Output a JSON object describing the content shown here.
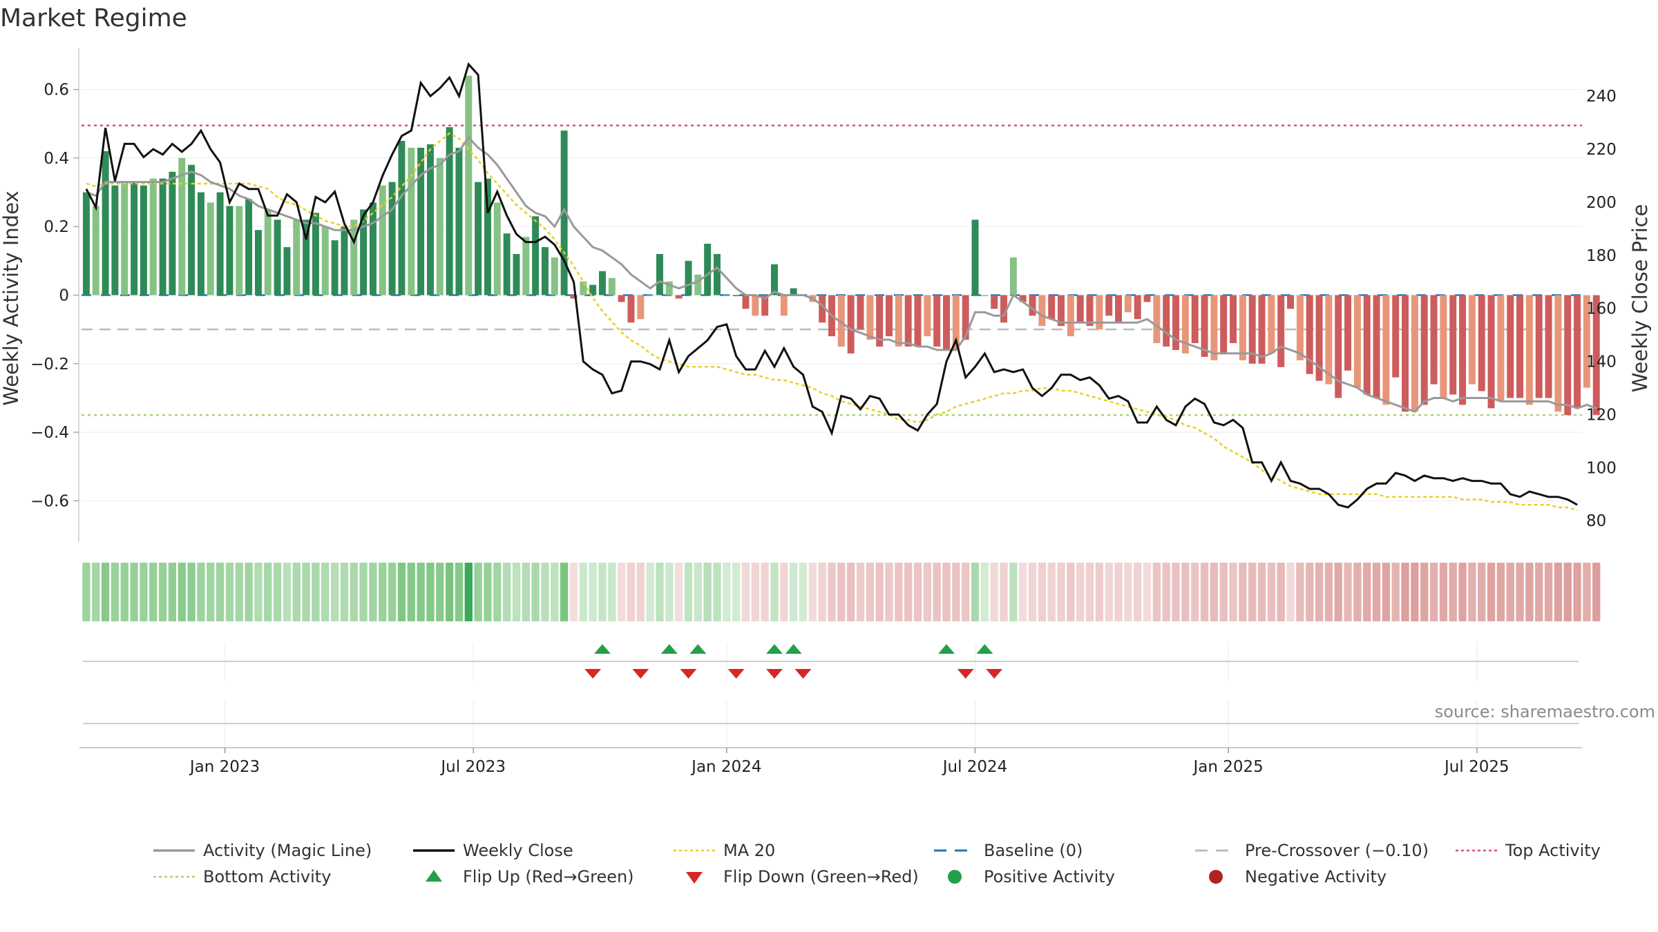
{
  "chart_data": {
    "type": "bar",
    "title": "Market Regime",
    "source": "source: sharemaestro.com",
    "left_axis": {
      "label": "Weekly Activity Index",
      "ylim": [
        -0.72,
        0.72
      ],
      "ticks": [
        0.6,
        0.4,
        0.2,
        0,
        -0.2,
        -0.4,
        -0.6
      ],
      "tick_labels": [
        "0.6",
        "0.4",
        "0.2",
        "0",
        "−0.2",
        "−0.4",
        "−0.6"
      ]
    },
    "right_axis": {
      "label": "Weekly Close Price",
      "ylim": [
        72,
        258
      ],
      "ticks": [
        240,
        220,
        200,
        180,
        160,
        140,
        120,
        100,
        80
      ],
      "tick_labels": [
        "240",
        "220",
        "200",
        "180",
        "160",
        "140",
        "120",
        "100",
        "80"
      ]
    },
    "x_axis": {
      "tick_labels": [
        "Jan 2023",
        "Jul 2023",
        "Jan 2024",
        "Jul 2024",
        "Jan 2025",
        "Jul 2025"
      ],
      "tick_weeks": [
        15,
        41,
        67.5,
        93.5,
        120,
        146
      ]
    },
    "reference_lines": {
      "top_activity": 0.495,
      "bottom_activity": -0.35,
      "pre_crossover": -0.1,
      "baseline": 0
    },
    "weeks": 157,
    "activity": [
      0.3,
      0.26,
      0.42,
      0.32,
      0.33,
      0.33,
      0.32,
      0.34,
      0.34,
      0.36,
      0.4,
      0.38,
      0.3,
      0.27,
      0.3,
      0.26,
      0.26,
      0.28,
      0.19,
      0.25,
      0.22,
      0.14,
      0.22,
      0.22,
      0.24,
      0.2,
      0.16,
      0.2,
      0.22,
      0.25,
      0.27,
      0.32,
      0.33,
      0.45,
      0.43,
      0.43,
      0.44,
      0.4,
      0.49,
      0.43,
      0.64,
      0.33,
      0.34,
      0.27,
      0.18,
      0.12,
      0.17,
      0.23,
      0.14,
      0.11,
      0.48,
      -0.01,
      0.04,
      0.03,
      0.07,
      0.05,
      -0.02,
      -0.08,
      -0.07,
      0.0,
      0.12,
      0.04,
      -0.01,
      0.1,
      0.06,
      0.15,
      0.12,
      0.0,
      0.0,
      -0.04,
      -0.06,
      -0.06,
      0.09,
      -0.06,
      0.02,
      0.0,
      -0.02,
      -0.08,
      -0.12,
      -0.15,
      -0.17,
      -0.1,
      -0.13,
      -0.15,
      -0.12,
      -0.15,
      -0.15,
      -0.15,
      -0.12,
      -0.15,
      -0.16,
      -0.16,
      -0.13,
      0.22,
      0.0,
      -0.04,
      -0.08,
      0.11,
      -0.02,
      -0.06,
      -0.09,
      -0.07,
      -0.09,
      -0.12,
      -0.08,
      -0.09,
      -0.1,
      -0.06,
      -0.08,
      -0.05,
      -0.07,
      -0.02,
      -0.14,
      -0.15,
      -0.16,
      -0.17,
      -0.14,
      -0.18,
      -0.19,
      -0.17,
      -0.14,
      -0.19,
      -0.2,
      -0.2,
      -0.17,
      -0.21,
      -0.04,
      -0.19,
      -0.23,
      -0.25,
      -0.26,
      -0.3,
      -0.22,
      -0.27,
      -0.29,
      -0.3,
      -0.32,
      -0.24,
      -0.34,
      -0.34,
      -0.32,
      -0.26,
      -0.3,
      -0.29,
      -0.32,
      -0.26,
      -0.28,
      -0.33,
      -0.31,
      -0.3,
      -0.3,
      -0.32,
      -0.3,
      -0.3,
      -0.34,
      -0.35,
      -0.33,
      -0.27,
      -0.35
    ],
    "magic_line": [
      0.3,
      0.29,
      0.33,
      0.33,
      0.33,
      0.33,
      0.33,
      0.33,
      0.33,
      0.34,
      0.35,
      0.36,
      0.35,
      0.33,
      0.32,
      0.31,
      0.29,
      0.28,
      0.26,
      0.25,
      0.24,
      0.23,
      0.22,
      0.21,
      0.21,
      0.2,
      0.19,
      0.19,
      0.19,
      0.2,
      0.21,
      0.23,
      0.25,
      0.29,
      0.32,
      0.35,
      0.37,
      0.38,
      0.41,
      0.42,
      0.46,
      0.43,
      0.41,
      0.38,
      0.34,
      0.3,
      0.26,
      0.24,
      0.23,
      0.2,
      0.25,
      0.2,
      0.17,
      0.14,
      0.13,
      0.11,
      0.09,
      0.06,
      0.04,
      0.02,
      0.04,
      0.03,
      0.02,
      0.03,
      0.04,
      0.06,
      0.08,
      0.05,
      0.02,
      0.0,
      0.0,
      -0.01,
      0.01,
      0.0,
      0.0,
      0.0,
      -0.01,
      -0.03,
      -0.06,
      -0.08,
      -0.1,
      -0.11,
      -0.12,
      -0.13,
      -0.13,
      -0.14,
      -0.14,
      -0.15,
      -0.15,
      -0.16,
      -0.16,
      -0.16,
      -0.12,
      -0.05,
      -0.05,
      -0.06,
      -0.06,
      0.0,
      -0.02,
      -0.04,
      -0.06,
      -0.07,
      -0.08,
      -0.08,
      -0.08,
      -0.08,
      -0.08,
      -0.08,
      -0.08,
      -0.08,
      -0.08,
      -0.07,
      -0.09,
      -0.11,
      -0.13,
      -0.14,
      -0.15,
      -0.16,
      -0.17,
      -0.17,
      -0.17,
      -0.17,
      -0.17,
      -0.18,
      -0.17,
      -0.15,
      -0.16,
      -0.17,
      -0.19,
      -0.21,
      -0.23,
      -0.25,
      -0.26,
      -0.27,
      -0.29,
      -0.3,
      -0.31,
      -0.32,
      -0.33,
      -0.34,
      -0.31,
      -0.3,
      -0.3,
      -0.31,
      -0.3,
      -0.3,
      -0.3,
      -0.3,
      -0.31,
      -0.31,
      -0.31,
      -0.31,
      -0.31,
      -0.31,
      -0.32,
      -0.32,
      -0.33,
      -0.32,
      -0.33
    ],
    "weekly_close": [
      205,
      198,
      228,
      208,
      222,
      222,
      217,
      220,
      218,
      222,
      219,
      222,
      227,
      220,
      215,
      200,
      207,
      205,
      205,
      195,
      195,
      203,
      200,
      186,
      202,
      200,
      204,
      192,
      185,
      195,
      200,
      210,
      218,
      225,
      227,
      245,
      240,
      243,
      247,
      240,
      252,
      248,
      196,
      204,
      195,
      188,
      185,
      185,
      187,
      184,
      178,
      170,
      140,
      137,
      135,
      128,
      129,
      140,
      140,
      139,
      137,
      148,
      136,
      142,
      145,
      148,
      153,
      154,
      142,
      137,
      137,
      144,
      138,
      145,
      138,
      135,
      123,
      121,
      113,
      127,
      126,
      122,
      127,
      126,
      120,
      120,
      116,
      114,
      120,
      124,
      140,
      148,
      134,
      138,
      143,
      136,
      137,
      136,
      137,
      130,
      127,
      130,
      135,
      135,
      133,
      134,
      131,
      126,
      127,
      125,
      117,
      117,
      123,
      118,
      116,
      123,
      126,
      124,
      117,
      116,
      118,
      115,
      102,
      102,
      95,
      102,
      95,
      94,
      92,
      92,
      90,
      86,
      85,
      88,
      92,
      94,
      94,
      98,
      97,
      95,
      97,
      96,
      96,
      95,
      96,
      95,
      95,
      94,
      94,
      90,
      89,
      91,
      90,
      89,
      89,
      88,
      86
    ],
    "ma20": [
      207,
      206,
      207,
      207,
      207,
      207,
      207,
      207,
      207,
      207,
      207,
      207,
      207,
      207,
      207,
      207,
      207,
      207,
      206,
      205,
      202,
      200,
      199,
      197,
      195,
      193,
      192,
      191,
      191,
      193,
      196,
      199,
      202,
      206,
      210,
      215,
      220,
      223,
      226,
      224,
      220,
      216,
      211,
      207,
      203,
      199,
      196,
      193,
      190,
      186,
      181,
      176,
      170,
      164,
      159,
      155,
      151,
      148,
      146,
      143,
      141,
      140,
      139,
      138,
      138,
      138,
      138,
      137,
      136,
      135,
      135,
      134,
      133,
      133,
      132,
      131,
      130,
      128,
      127,
      125,
      124,
      123,
      122,
      121,
      120,
      118,
      118,
      117,
      118,
      120,
      121,
      123,
      124,
      125,
      126,
      127,
      128,
      128,
      129,
      129,
      130,
      130,
      129,
      129,
      128,
      127,
      126,
      125,
      124,
      123,
      122,
      121,
      120,
      119,
      118,
      116,
      115,
      113,
      111,
      108,
      106,
      104,
      102,
      99,
      97,
      95,
      93,
      92,
      91,
      90,
      90,
      90,
      90,
      90,
      90,
      90,
      89,
      89,
      89,
      89,
      89,
      89,
      89,
      89,
      88,
      88,
      88,
      87,
      87,
      87,
      86,
      86,
      86,
      86,
      85,
      85,
      84
    ],
    "flip_up_weeks": [
      54,
      61,
      64,
      72,
      74,
      90,
      94
    ],
    "flip_down_weeks": [
      53,
      58,
      63,
      68,
      72,
      75,
      92,
      95
    ],
    "colors": {
      "pos_dark": "#2e8b57",
      "pos_light": "#86c285",
      "neg_dark": "#cd5c5c",
      "neg_light": "#e8967a",
      "magic_line": "#999999",
      "weekly_close": "#111111",
      "ma20": "#e8d020",
      "baseline": "#1f77b4",
      "pre_crossover": "#bbbbbb",
      "top": "#d9536b",
      "bottom": "#a8d46f",
      "flip_up": "#23a04a",
      "flip_down": "#d62728",
      "positive": "#23a04a",
      "negative": "#b22222"
    },
    "legend": {
      "magic_line": "Activity (Magic Line)",
      "weekly_close": "Weekly Close",
      "ma20": "MA 20",
      "baseline": "Baseline (0)",
      "pre_crossover": "Pre-Crossover (−0.10)",
      "top": "Top Activity",
      "bottom": "Bottom Activity",
      "flip_up": "Flip Up (Red→Green)",
      "flip_down": "Flip Down (Green→Red)",
      "positive": "Positive Activity",
      "negative": "Negative Activity"
    }
  }
}
